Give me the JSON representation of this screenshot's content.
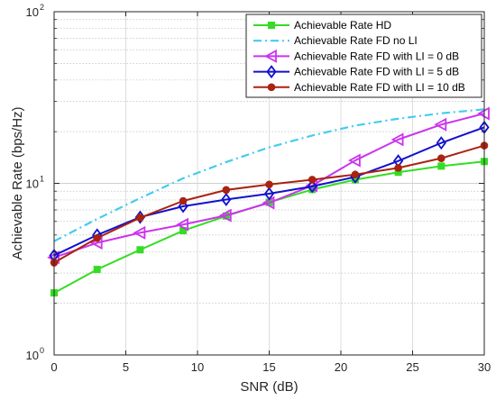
{
  "chart_data": {
    "type": "line",
    "title": "",
    "xlabel": "SNR (dB)",
    "ylabel": "Achievable Rate (bps/Hz)",
    "xlim": [
      0,
      30
    ],
    "ylim": [
      1,
      100
    ],
    "yscale": "log",
    "grid": true,
    "legend_position": "top-right",
    "x_ticks": [
      "0",
      "5",
      "10",
      "15",
      "20",
      "25",
      "30"
    ],
    "y_ticks": [
      {
        "value": 1,
        "base": "10",
        "exp": "0"
      },
      {
        "value": 10,
        "base": "10",
        "exp": "1"
      },
      {
        "value": 100,
        "base": "10",
        "exp": "2"
      }
    ],
    "series": [
      {
        "name": "Achievable Rate HD",
        "color": "#33dd22",
        "marker": "square",
        "dashed": false,
        "x": [
          0,
          3,
          6,
          9,
          12,
          15,
          18,
          21,
          24,
          27,
          30
        ],
        "values": [
          2.3,
          3.15,
          4.1,
          5.3,
          6.45,
          7.75,
          9.2,
          10.5,
          11.6,
          12.6,
          13.4
        ]
      },
      {
        "name": "Achievable Rate FD no LI",
        "color": "#44ccee",
        "marker": "none",
        "dashed": true,
        "x": [
          0,
          3,
          6,
          9,
          12,
          15,
          18,
          21,
          24,
          27,
          30
        ],
        "values": [
          4.6,
          6.2,
          8.2,
          10.7,
          13.3,
          16.2,
          19.0,
          21.7,
          23.8,
          25.6,
          27.0
        ]
      },
      {
        "name": "Achievable Rate FD with LI = 0 dB",
        "color": "#cc33ee",
        "marker": "triangle-left",
        "dashed": false,
        "x": [
          0,
          3,
          6,
          9,
          12,
          15,
          18,
          21,
          24,
          27,
          30
        ],
        "values": [
          3.7,
          4.5,
          5.15,
          5.75,
          6.5,
          7.7,
          9.7,
          13.6,
          18.0,
          22.0,
          25.5
        ]
      },
      {
        "name": "Achievable Rate FD with LI = 5 dB",
        "color": "#1111cc",
        "marker": "diamond",
        "dashed": false,
        "x": [
          0,
          3,
          6,
          9,
          12,
          15,
          18,
          21,
          24,
          27,
          30
        ],
        "values": [
          3.8,
          5.0,
          6.35,
          7.35,
          8.05,
          8.7,
          9.6,
          10.9,
          13.5,
          17.2,
          21.2
        ]
      },
      {
        "name": "Achievable Rate FD with LI = 10 dB",
        "color": "#aa2211",
        "marker": "circle",
        "dashed": false,
        "x": [
          0,
          3,
          6,
          9,
          12,
          15,
          18,
          21,
          24,
          27,
          30
        ],
        "values": [
          3.45,
          4.8,
          6.3,
          7.9,
          9.15,
          9.85,
          10.5,
          11.25,
          12.3,
          14.0,
          16.6
        ]
      }
    ]
  }
}
